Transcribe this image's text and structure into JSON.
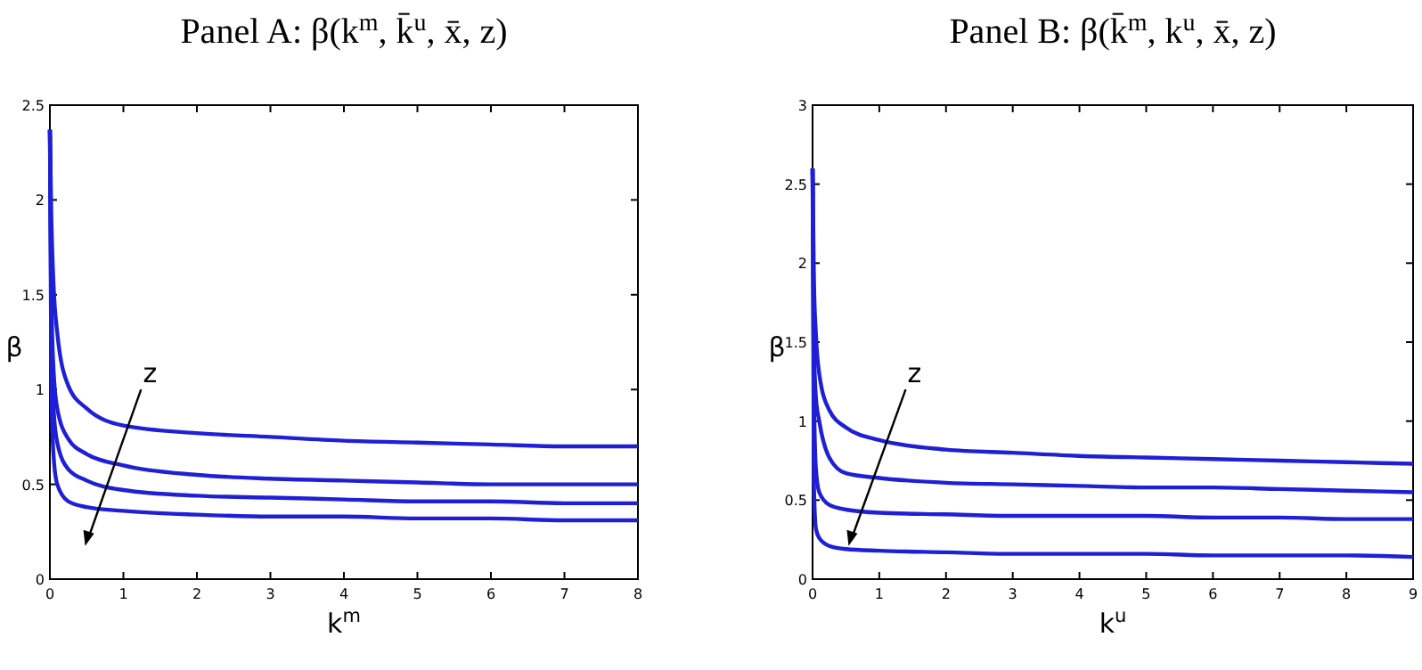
{
  "chart_data": [
    {
      "type": "line",
      "title": "Panel A: β(k$^{m}$, k̄$^{u}$, x̄, z)",
      "xlabel": "k$^{m}$",
      "ylabel": "β",
      "annotations": [
        "z"
      ],
      "xlim": [
        0,
        8
      ],
      "ylim": [
        0,
        2.5
      ],
      "xticks": [
        0,
        1,
        2,
        3,
        4,
        5,
        6,
        7,
        8
      ],
      "yticks": [
        0,
        0.5,
        1,
        1.5,
        2,
        2.5
      ],
      "x": [
        0,
        0.02,
        0.05,
        0.1,
        0.25,
        0.5,
        1,
        2,
        3,
        4,
        5,
        6,
        7,
        8
      ],
      "series": [
        {
          "color": "#1f1fd6",
          "values": [
            2.37,
            1.9,
            1.55,
            1.3,
            1.02,
            0.9,
            0.81,
            0.77,
            0.75,
            0.73,
            0.72,
            0.71,
            0.7,
            0.7
          ]
        },
        {
          "color": "#1f1fd6",
          "values": [
            2.37,
            1.5,
            1.1,
            0.9,
            0.74,
            0.66,
            0.6,
            0.55,
            0.53,
            0.52,
            0.51,
            0.5,
            0.5,
            0.5
          ]
        },
        {
          "color": "#1f1fd6",
          "values": [
            2.37,
            1.3,
            0.9,
            0.72,
            0.58,
            0.52,
            0.47,
            0.44,
            0.43,
            0.42,
            0.41,
            0.41,
            0.4,
            0.4
          ]
        },
        {
          "color": "#1f1fd6",
          "values": [
            2.37,
            1.0,
            0.65,
            0.5,
            0.41,
            0.38,
            0.36,
            0.34,
            0.33,
            0.33,
            0.32,
            0.32,
            0.31,
            0.31
          ]
        }
      ]
    },
    {
      "type": "line",
      "title": "Panel B: β(k̄$^{m}$, k$^{u}$, x̄, z)",
      "xlabel": "k$^{u}$",
      "ylabel": "β",
      "annotations": [
        "z"
      ],
      "xlim": [
        0,
        9
      ],
      "ylim": [
        0,
        3
      ],
      "xticks": [
        0,
        1,
        2,
        3,
        4,
        5,
        6,
        7,
        8,
        9
      ],
      "yticks": [
        0,
        0.5,
        1,
        1.5,
        2,
        2.5,
        3
      ],
      "x": [
        0,
        0.02,
        0.05,
        0.1,
        0.25,
        0.5,
        1,
        2,
        3,
        4,
        5,
        6,
        7,
        8,
        9
      ],
      "series": [
        {
          "color": "#1f1fd6",
          "values": [
            2.6,
            1.9,
            1.55,
            1.3,
            1.07,
            0.96,
            0.88,
            0.82,
            0.8,
            0.78,
            0.77,
            0.76,
            0.75,
            0.74,
            0.73
          ]
        },
        {
          "color": "#1f1fd6",
          "values": [
            2.6,
            1.5,
            1.15,
            1.0,
            0.77,
            0.67,
            0.64,
            0.61,
            0.6,
            0.59,
            0.58,
            0.58,
            0.57,
            0.56,
            0.55
          ]
        },
        {
          "color": "#1f1fd6",
          "values": [
            2.6,
            1.2,
            0.7,
            0.55,
            0.47,
            0.44,
            0.42,
            0.41,
            0.4,
            0.4,
            0.4,
            0.39,
            0.39,
            0.38,
            0.38
          ]
        },
        {
          "color": "#1f1fd6",
          "values": [
            2.6,
            0.6,
            0.32,
            0.26,
            0.21,
            0.19,
            0.18,
            0.17,
            0.16,
            0.16,
            0.16,
            0.15,
            0.15,
            0.15,
            0.14
          ]
        }
      ]
    }
  ]
}
